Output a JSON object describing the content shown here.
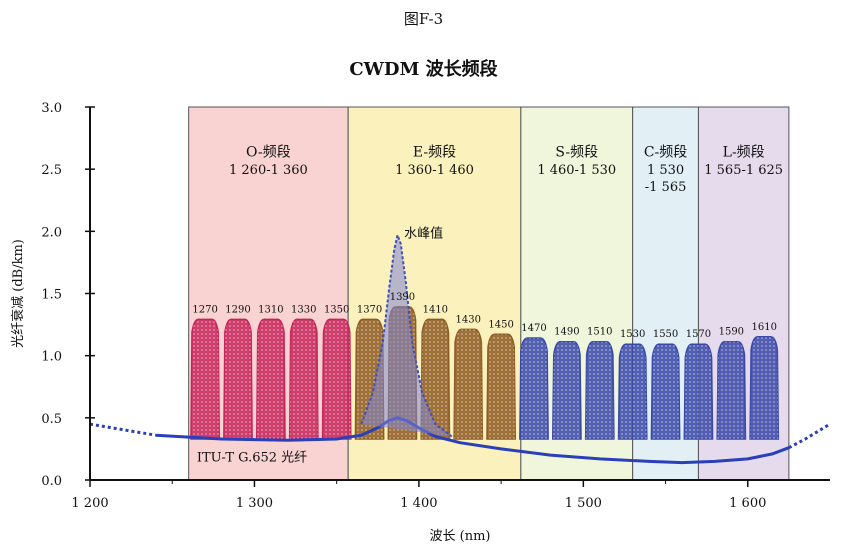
{
  "figure_number": "图F-3",
  "title": "CWDM 波长频段",
  "chart_data": {
    "type": "line",
    "title": "CWDM 波长频段",
    "xlabel": "波长 (nm)",
    "ylabel": "光纤衰减 (dB/km)",
    "xlim": [
      1200,
      1650
    ],
    "ylim": [
      0.0,
      3.0
    ],
    "x_ticks": [
      1200,
      1300,
      1400,
      1500,
      1600
    ],
    "x_tick_labels": [
      "1 200",
      "1 300",
      "1 400",
      "1 500",
      "1 600"
    ],
    "y_ticks": [
      0.0,
      0.5,
      1.0,
      1.5,
      2.0,
      2.5,
      3.0
    ],
    "y_tick_labels": [
      "0.0",
      "0.5",
      "1.0",
      "1.5",
      "2.0",
      "2.5",
      "3.0"
    ],
    "bands": [
      {
        "name": "O-频段",
        "range_label": "1 260-1 360",
        "start": 1260,
        "end": 1357,
        "color": "#f9d2d2"
      },
      {
        "name": "E-频段",
        "range_label": "1 360-1 460",
        "start": 1357,
        "end": 1462,
        "color": "#fbf1bd"
      },
      {
        "name": "S-频段",
        "range_label": "1 460-1 530",
        "start": 1462,
        "end": 1530,
        "color": "#eff6dc"
      },
      {
        "name": "C-频段",
        "range_label": "1 530\n-1 565",
        "start": 1530,
        "end": 1570,
        "color": "#e2f0f5"
      },
      {
        "name": "L-频段",
        "range_label": "1 565-1 625",
        "start": 1570,
        "end": 1625,
        "color": "#e6dbec"
      }
    ],
    "channels": [
      {
        "label": "1270",
        "center": 1270,
        "peak": 1.3,
        "color": "#c5245a"
      },
      {
        "label": "1290",
        "center": 1290,
        "peak": 1.3,
        "color": "#c5245a"
      },
      {
        "label": "1310",
        "center": 1310,
        "peak": 1.3,
        "color": "#c5245a"
      },
      {
        "label": "1330",
        "center": 1330,
        "peak": 1.3,
        "color": "#c5245a"
      },
      {
        "label": "1350",
        "center": 1350,
        "peak": 1.3,
        "color": "#c5245a"
      },
      {
        "label": "1370",
        "center": 1370,
        "peak": 1.3,
        "color": "#8e5a22"
      },
      {
        "label": "1390",
        "center": 1390,
        "peak": 1.4,
        "color": "#8e5a22"
      },
      {
        "label": "1410",
        "center": 1410,
        "peak": 1.3,
        "color": "#8e5a22"
      },
      {
        "label": "1430",
        "center": 1430,
        "peak": 1.22,
        "color": "#8e5a22"
      },
      {
        "label": "1450",
        "center": 1450,
        "peak": 1.18,
        "color": "#8e5a22"
      },
      {
        "label": "1470",
        "center": 1470,
        "peak": 1.15,
        "color": "#3847a8"
      },
      {
        "label": "1490",
        "center": 1490,
        "peak": 1.12,
        "color": "#3847a8"
      },
      {
        "label": "1510",
        "center": 1510,
        "peak": 1.12,
        "color": "#3847a8"
      },
      {
        "label": "1530",
        "center": 1530,
        "peak": 1.1,
        "color": "#3847a8"
      },
      {
        "label": "1550",
        "center": 1550,
        "peak": 1.1,
        "color": "#3847a8"
      },
      {
        "label": "1570",
        "center": 1570,
        "peak": 1.1,
        "color": "#3847a8"
      },
      {
        "label": "1590",
        "center": 1590,
        "peak": 1.12,
        "color": "#3847a8"
      },
      {
        "label": "1610",
        "center": 1610,
        "peak": 1.16,
        "color": "#3847a8"
      }
    ],
    "series": [
      {
        "name": "ITU-T G.652 光纤",
        "color": "#2b3fb8",
        "x": [
          1200,
          1240,
          1280,
          1320,
          1350,
          1365,
          1375,
          1382,
          1387,
          1392,
          1400,
          1410,
          1425,
          1450,
          1480,
          1510,
          1540,
          1560,
          1580,
          1600,
          1615,
          1625
        ],
        "y": [
          0.45,
          0.36,
          0.33,
          0.32,
          0.33,
          0.36,
          0.42,
          0.48,
          0.5,
          0.48,
          0.42,
          0.35,
          0.3,
          0.25,
          0.2,
          0.17,
          0.15,
          0.14,
          0.15,
          0.17,
          0.21,
          0.26
        ]
      },
      {
        "name": "水峰值",
        "color": "#4050c0",
        "x": [
          1365,
          1372,
          1378,
          1382,
          1385,
          1387,
          1389,
          1392,
          1396,
          1402,
          1410,
          1420
        ],
        "y": [
          0.45,
          0.7,
          1.1,
          1.55,
          1.85,
          1.97,
          1.9,
          1.6,
          1.1,
          0.7,
          0.45,
          0.35
        ]
      },
      {
        "name": "extension",
        "color": "#2b3fb8",
        "x": [
          1625,
          1635,
          1645,
          1650
        ],
        "y": [
          0.26,
          0.33,
          0.41,
          0.45
        ]
      }
    ],
    "annotations": [
      {
        "text": "水峰值",
        "x": 1400,
        "y": 2.0
      },
      {
        "text": "ITU-T G.652 光纤",
        "x": 1265,
        "y": 0.15
      }
    ]
  }
}
